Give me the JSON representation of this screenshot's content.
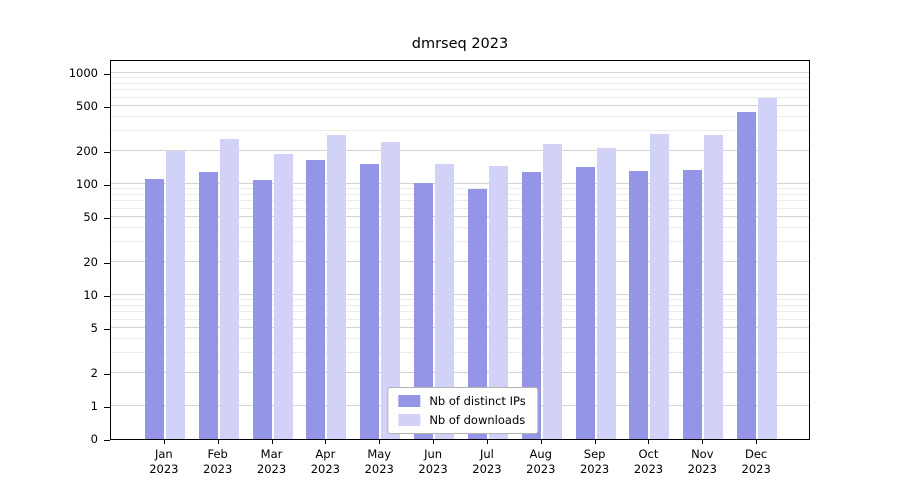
{
  "chart_data": {
    "type": "bar",
    "title": "dmrseq 2023",
    "yscale": "log",
    "ylim": [
      0,
      1000
    ],
    "yticks": [
      0,
      1,
      2,
      5,
      10,
      20,
      50,
      100,
      200,
      500,
      1000
    ],
    "grid": true,
    "legend_position": "lower center inside",
    "categories": [
      {
        "month": "Jan",
        "year": "2023"
      },
      {
        "month": "Feb",
        "year": "2023"
      },
      {
        "month": "Mar",
        "year": "2023"
      },
      {
        "month": "Apr",
        "year": "2023"
      },
      {
        "month": "May",
        "year": "2023"
      },
      {
        "month": "Jun",
        "year": "2023"
      },
      {
        "month": "Jul",
        "year": "2023"
      },
      {
        "month": "Aug",
        "year": "2023"
      },
      {
        "month": "Sep",
        "year": "2023"
      },
      {
        "month": "Oct",
        "year": "2023"
      },
      {
        "month": "Nov",
        "year": "2023"
      },
      {
        "month": "Dec",
        "year": "2023"
      }
    ],
    "series": [
      {
        "name": "Nb of distinct IPs",
        "color": "#9595e8",
        "values": [
          110,
          128,
          108,
          163,
          150,
          103,
          90,
          128,
          142,
          130,
          134,
          450
        ]
      },
      {
        "name": "Nb of downloads",
        "color": "#d2d2f8",
        "values": [
          200,
          252,
          185,
          278,
          240,
          150,
          144,
          228,
          210,
          282,
          278,
          600
        ]
      }
    ]
  }
}
